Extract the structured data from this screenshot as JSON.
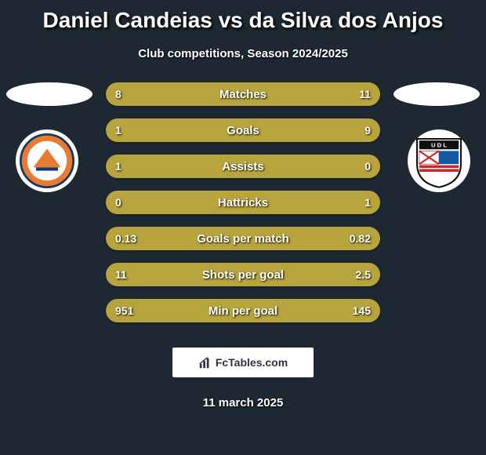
{
  "title": "Daniel Candeias vs da Silva dos Anjos",
  "subtitle": "Club competitions, Season 2024/2025",
  "date": "11 march 2025",
  "brand": "FcTables.com",
  "colors": {
    "background": "#1e2832",
    "bar_bg": "#5a5b2e",
    "bar_fill": "#b7a43c",
    "text": "#ffffff"
  },
  "bars": [
    {
      "label": "Matches",
      "left": "8",
      "right": "11",
      "left_pct": 42,
      "right_pct": 58
    },
    {
      "label": "Goals",
      "left": "1",
      "right": "9",
      "left_pct": 10,
      "right_pct": 90
    },
    {
      "label": "Assists",
      "left": "1",
      "right": "0",
      "left_pct": 100,
      "right_pct": 0
    },
    {
      "label": "Hattricks",
      "left": "0",
      "right": "1",
      "left_pct": 0,
      "right_pct": 100
    },
    {
      "label": "Goals per match",
      "left": "0.13",
      "right": "0.82",
      "left_pct": 14,
      "right_pct": 86
    },
    {
      "label": "Shots per goal",
      "left": "11",
      "right": "2.5",
      "left_pct": 81,
      "right_pct": 19
    },
    {
      "label": "Min per goal",
      "left": "951",
      "right": "145",
      "left_pct": 87,
      "right_pct": 13
    }
  ],
  "crests": {
    "left_name": "adanaspor-crest",
    "right_name": "udl-crest"
  }
}
